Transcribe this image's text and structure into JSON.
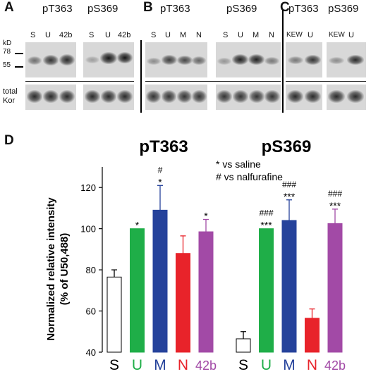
{
  "panels": {
    "A": {
      "letter": "A",
      "groups": [
        {
          "title": "pT363",
          "lanes": [
            "S",
            "U",
            "42b"
          ]
        },
        {
          "title": "pS369",
          "lanes": [
            "S",
            "U",
            "42b"
          ]
        }
      ]
    },
    "B": {
      "letter": "B",
      "groups": [
        {
          "title": "pT363",
          "lanes": [
            "S",
            "U",
            "M",
            "N"
          ]
        },
        {
          "title": "pS369",
          "lanes": [
            "S",
            "U",
            "M",
            "N"
          ]
        }
      ]
    },
    "C": {
      "letter": "C",
      "groups": [
        {
          "title": "pT363",
          "lanes": [
            "KEW",
            "U"
          ]
        },
        {
          "title": "pS369",
          "lanes": [
            "KEW",
            "U"
          ]
        }
      ]
    },
    "D": {
      "letter": "D"
    }
  },
  "markers": {
    "unit": "kD",
    "m78": "78",
    "m55": "55"
  },
  "loading_label": {
    "line1": "total",
    "line2": "Kor"
  },
  "chart_data": {
    "type": "bar",
    "ylabel_line1": "Normalized relative intensity",
    "ylabel_line2": "(% of U50,488)",
    "ylim": [
      40,
      130
    ],
    "yticks": [
      40,
      60,
      80,
      100,
      120
    ],
    "legend": [
      "* vs saline",
      "# vs nalfurafine"
    ],
    "groups": [
      {
        "title": "pT363",
        "categories": [
          "S",
          "U",
          "M",
          "N",
          "42b"
        ],
        "values": [
          76.5,
          100,
          109,
          88,
          98.5
        ],
        "errors": [
          3.5,
          0,
          12,
          8.5,
          6
        ],
        "annotations": [
          "",
          "*",
          "#\n*",
          "",
          "*"
        ]
      },
      {
        "title": "pS369",
        "categories": [
          "S",
          "U",
          "M",
          "N",
          "42b"
        ],
        "values": [
          46.5,
          100,
          104,
          56.5,
          102.5
        ],
        "errors": [
          3.5,
          0,
          10,
          4.5,
          7
        ],
        "annotations": [
          "",
          "###\n***",
          "###\n***",
          "",
          "###\n***"
        ]
      }
    ],
    "colors": {
      "S": "#ffffff",
      "U": "#1fae48",
      "M": "#25429b",
      "N": "#e8232a",
      "42b": "#a24aa6"
    }
  }
}
